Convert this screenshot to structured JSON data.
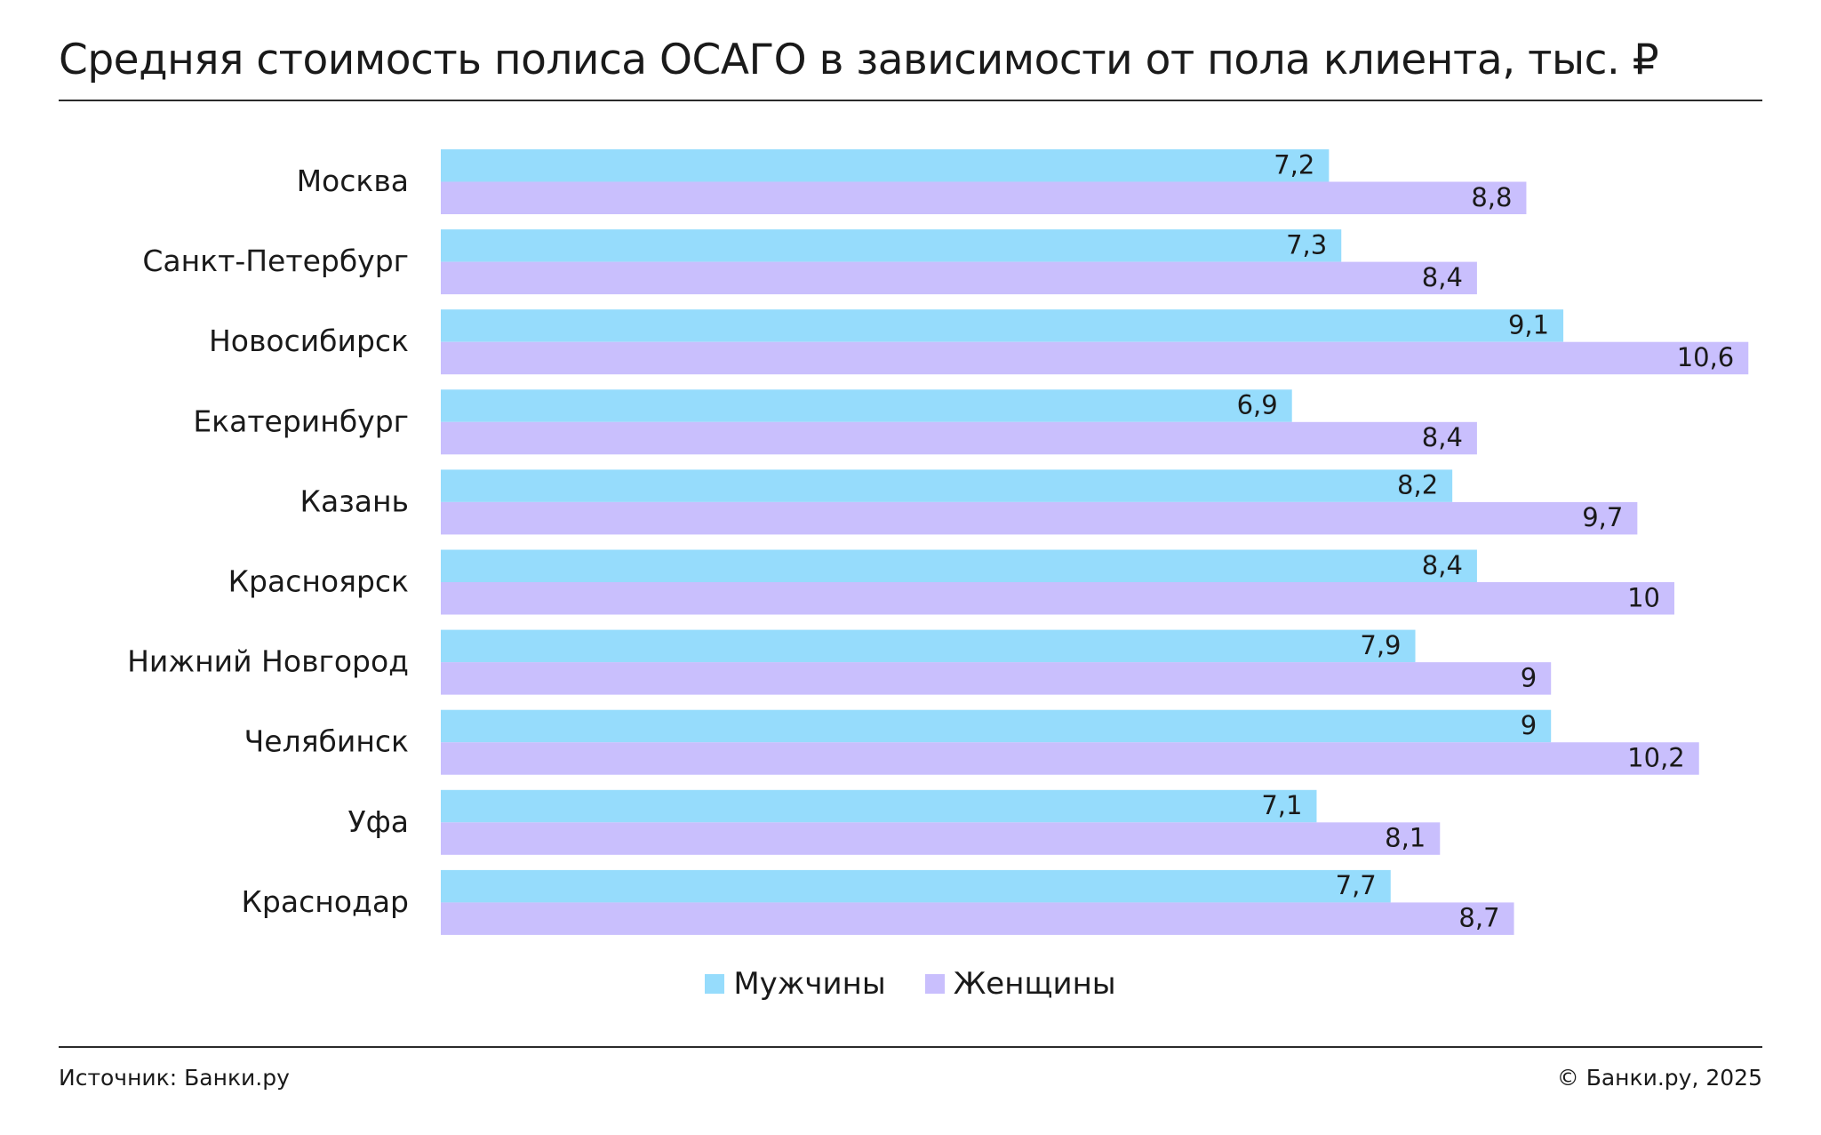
{
  "colors": {
    "men": "#96dcfc",
    "women": "#c9bffd"
  },
  "chart_data": {
    "type": "bar",
    "orientation": "horizontal",
    "title": "Средняя стоимость полиса ОСАГО в зависимости от пола клиента, тыс. ₽",
    "categories": [
      "Москва",
      "Санкт-Петербург",
      "Новосибирск",
      "Екатеринбург",
      "Казань",
      "Красноярск",
      "Нижний Новгород",
      "Челябинск",
      "Уфа",
      "Краснодар"
    ],
    "series": [
      {
        "name": "Мужчины",
        "values": [
          7.2,
          7.3,
          9.1,
          6.9,
          8.2,
          8.4,
          7.9,
          9,
          7.1,
          7.7
        ],
        "labels": [
          "7,2",
          "7,3",
          "9,1",
          "6,9",
          "8,2",
          "8,4",
          "7,9",
          "9",
          "7,1",
          "7,7"
        ]
      },
      {
        "name": "Женщины",
        "values": [
          8.8,
          8.4,
          10.6,
          8.4,
          9.7,
          10,
          9,
          10.2,
          8.1,
          8.7
        ],
        "labels": [
          "8,8",
          "8,4",
          "10,6",
          "8,4",
          "9,7",
          "10",
          "9",
          "10,2",
          "8,1",
          "8,7"
        ]
      }
    ],
    "xlim": [
      0,
      11
    ],
    "grid": false,
    "legend": "bottom-center"
  },
  "footer": {
    "source": "Источник: Банки.ру",
    "copyright": "© Банки.ру, 2025"
  }
}
